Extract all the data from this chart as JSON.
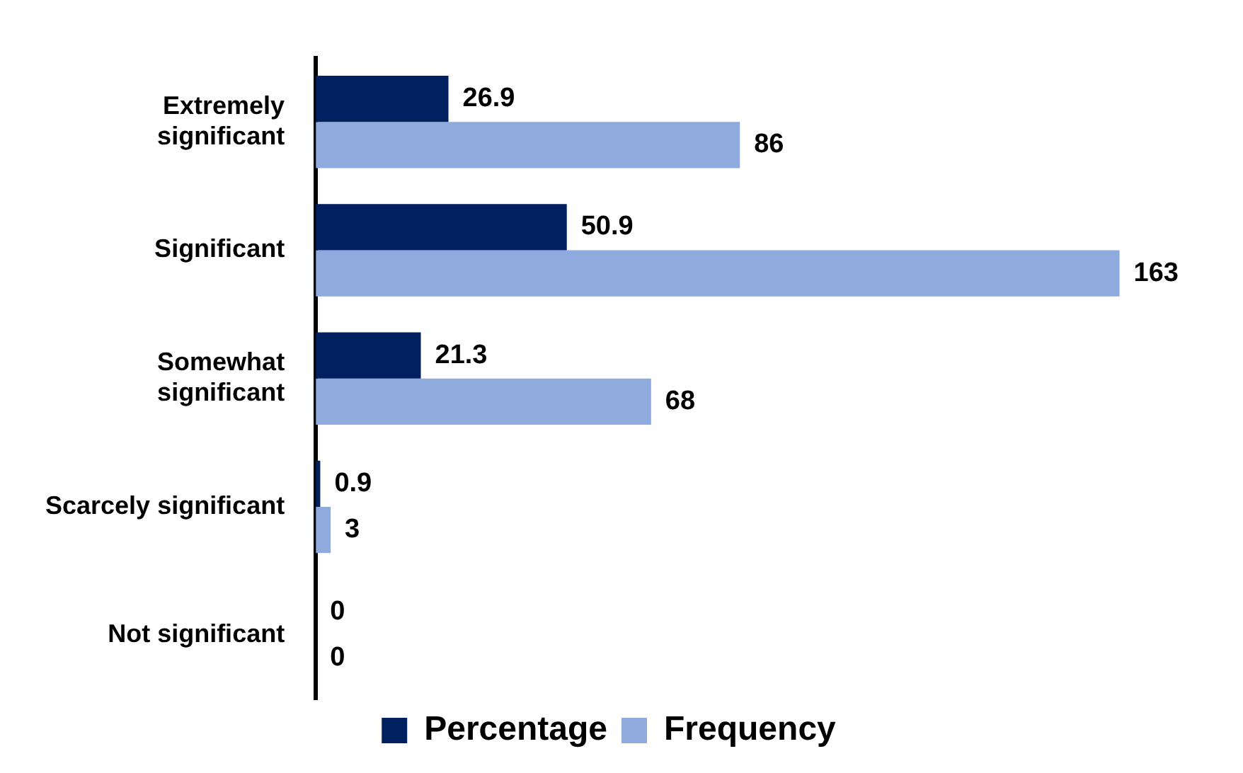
{
  "chart_data": {
    "type": "bar",
    "orientation": "horizontal",
    "categories": [
      "Extremely\nsignificant",
      "Significant",
      "Somewhat\nsignificant",
      "Scarcely significant",
      "Not significant"
    ],
    "series": [
      {
        "name": "Percentage",
        "color": "#002060",
        "values": [
          26.9,
          50.9,
          21.3,
          0.9,
          0
        ]
      },
      {
        "name": "Frequency",
        "color": "#8faadc",
        "values": [
          86,
          163,
          68,
          3,
          0
        ]
      }
    ],
    "tick_labels": "y",
    "grid": false,
    "legend": "bottom",
    "data_labels": true
  }
}
